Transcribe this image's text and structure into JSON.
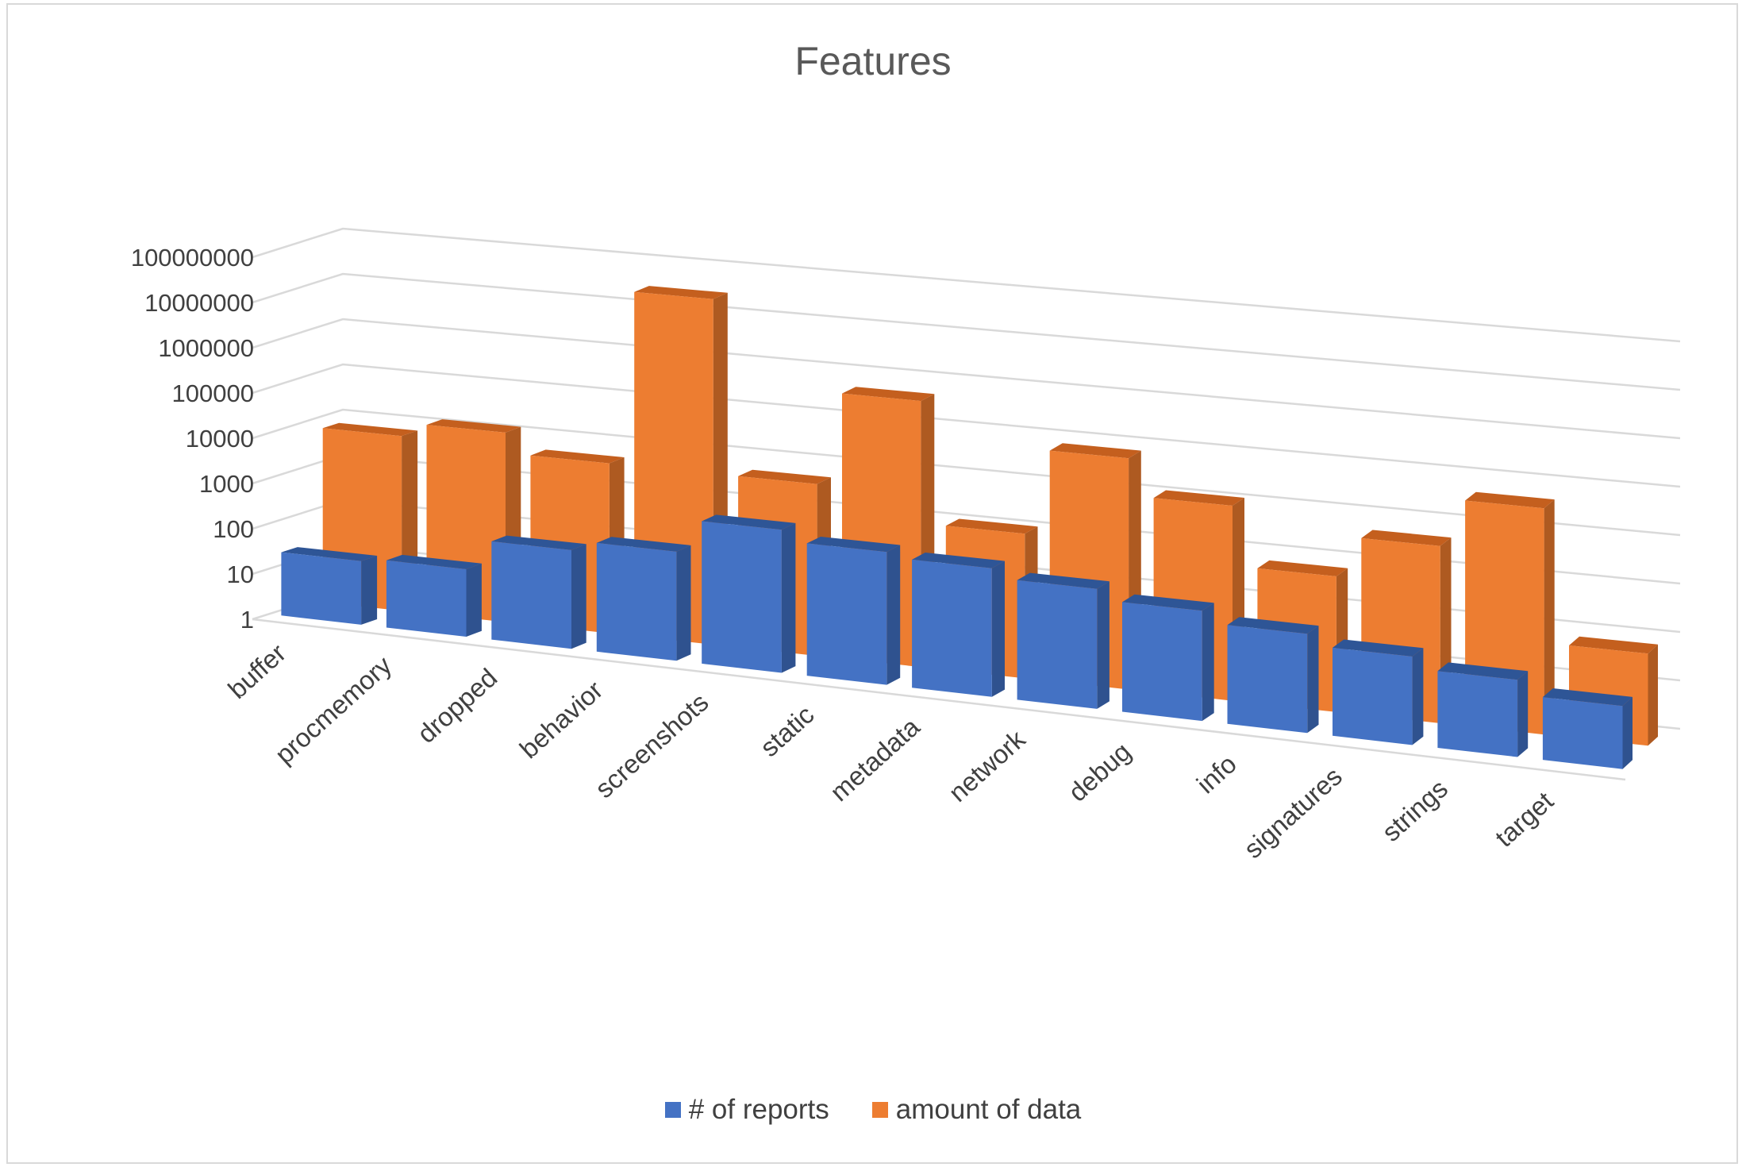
{
  "chart_data": {
    "type": "bar",
    "title": "Features",
    "scale": "log10",
    "ylim": [
      1,
      100000000
    ],
    "yticks": [
      "1",
      "10",
      "100",
      "1000",
      "10000",
      "100000",
      "1000000",
      "10000000",
      "100000000"
    ],
    "categories": [
      "buffer",
      "procmemory",
      "dropped",
      "behavior",
      "screenshots",
      "static",
      "metadata",
      "network",
      "debug",
      "info",
      "signatures",
      "strings",
      "target"
    ],
    "series": [
      {
        "name": "# of reports",
        "color": "#4472c4",
        "values": [
          25,
          30,
          140,
          230,
          1200,
          700,
          550,
          350,
          210,
          120,
          70,
          40,
          20
        ]
      },
      {
        "name": "amount of data",
        "color": "#ed7d31",
        "values": [
          7000,
          14000,
          5000,
          30000000,
          5000,
          500000,
          1200,
          80000,
          13000,
          700,
          5000,
          50000,
          80
        ]
      }
    ],
    "legend_position": "bottom"
  }
}
